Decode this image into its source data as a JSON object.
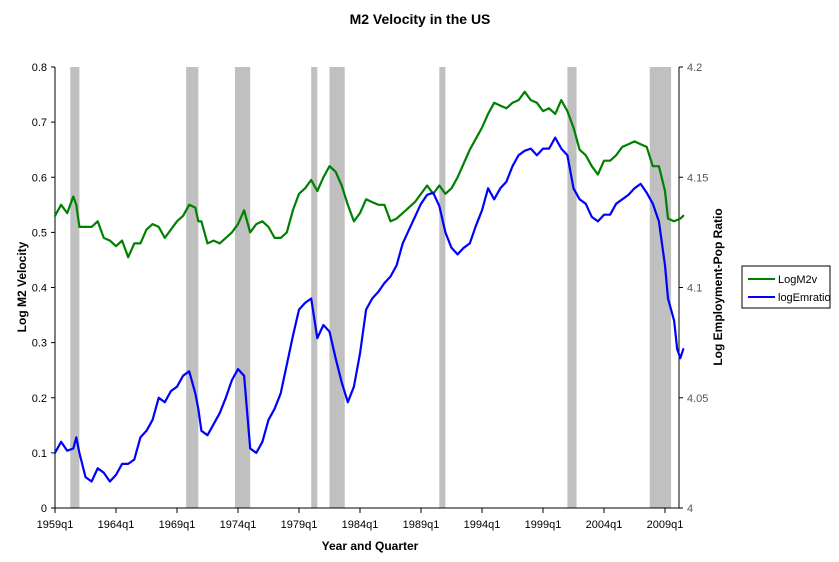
{
  "chart_data": {
    "type": "line",
    "title": "M2 Velocity in the US",
    "xlabel": "Year and Quarter",
    "ylabel": "Log M2 Velocity",
    "y2label": "Log Employment-Pop  Ratio",
    "ylim": [
      0,
      0.8
    ],
    "y2lim": [
      4,
      4.2
    ],
    "yticks": [
      "0",
      "0.1",
      "0.2",
      "0.3",
      "0.4",
      "0.5",
      "0.6",
      "0.7",
      "0.8"
    ],
    "y2ticks": [
      "4",
      "4.05",
      "4.1",
      "4.15",
      "4.2"
    ],
    "xticks": [
      {
        "label": "1959q1",
        "year": 1959.0
      },
      {
        "label": "1964q1",
        "year": 1964.0
      },
      {
        "label": "1969q1",
        "year": 1969.0
      },
      {
        "label": "1974q1",
        "year": 1974.0
      },
      {
        "label": "1979q1",
        "year": 1979.0
      },
      {
        "label": "1984q1",
        "year": 1984.0
      },
      {
        "label": "1989q1",
        "year": 1989.0
      },
      {
        "label": "1994q1",
        "year": 1994.0
      },
      {
        "label": "1999q1",
        "year": 1999.0
      },
      {
        "label": "2004q1",
        "year": 2004.0
      },
      {
        "label": "2009q1",
        "year": 2009.0
      }
    ],
    "xlim": [
      1959.0,
      2010.5
    ],
    "recessions": [
      [
        1960.25,
        1961.0
      ],
      [
        1969.75,
        1970.75
      ],
      [
        1973.75,
        1975.0
      ],
      [
        1980.0,
        1980.5
      ],
      [
        1981.5,
        1982.75
      ],
      [
        1990.5,
        1991.0
      ],
      [
        2001.0,
        2001.75
      ],
      [
        2007.75,
        2009.5
      ]
    ],
    "legend_position": "right",
    "series": [
      {
        "name": "LogM2v",
        "axis": "left",
        "color": "#008000",
        "points": [
          [
            1959.0,
            0.53
          ],
          [
            1959.5,
            0.55
          ],
          [
            1960.0,
            0.535
          ],
          [
            1960.5,
            0.565
          ],
          [
            1960.75,
            0.55
          ],
          [
            1961.0,
            0.51
          ],
          [
            1961.5,
            0.51
          ],
          [
            1962.0,
            0.51
          ],
          [
            1962.5,
            0.52
          ],
          [
            1963.0,
            0.49
          ],
          [
            1963.5,
            0.485
          ],
          [
            1964.0,
            0.475
          ],
          [
            1964.5,
            0.485
          ],
          [
            1965.0,
            0.455
          ],
          [
            1965.5,
            0.48
          ],
          [
            1966.0,
            0.48
          ],
          [
            1966.5,
            0.505
          ],
          [
            1967.0,
            0.515
          ],
          [
            1967.5,
            0.51
          ],
          [
            1968.0,
            0.49
          ],
          [
            1968.5,
            0.505
          ],
          [
            1969.0,
            0.52
          ],
          [
            1969.5,
            0.53
          ],
          [
            1970.0,
            0.55
          ],
          [
            1970.5,
            0.545
          ],
          [
            1970.75,
            0.52
          ],
          [
            1971.0,
            0.52
          ],
          [
            1971.5,
            0.48
          ],
          [
            1972.0,
            0.485
          ],
          [
            1972.5,
            0.48
          ],
          [
            1973.0,
            0.49
          ],
          [
            1973.5,
            0.5
          ],
          [
            1974.0,
            0.515
          ],
          [
            1974.5,
            0.54
          ],
          [
            1975.0,
            0.5
          ],
          [
            1975.5,
            0.515
          ],
          [
            1976.0,
            0.52
          ],
          [
            1976.5,
            0.51
          ],
          [
            1977.0,
            0.49
          ],
          [
            1977.5,
            0.49
          ],
          [
            1978.0,
            0.5
          ],
          [
            1978.5,
            0.54
          ],
          [
            1979.0,
            0.57
          ],
          [
            1979.5,
            0.58
          ],
          [
            1980.0,
            0.595
          ],
          [
            1980.5,
            0.575
          ],
          [
            1981.0,
            0.6
          ],
          [
            1981.5,
            0.62
          ],
          [
            1982.0,
            0.61
          ],
          [
            1982.5,
            0.585
          ],
          [
            1983.0,
            0.55
          ],
          [
            1983.5,
            0.52
          ],
          [
            1984.0,
            0.535
          ],
          [
            1984.5,
            0.56
          ],
          [
            1985.0,
            0.555
          ],
          [
            1985.5,
            0.55
          ],
          [
            1986.0,
            0.55
          ],
          [
            1986.5,
            0.52
          ],
          [
            1987.0,
            0.525
          ],
          [
            1987.5,
            0.535
          ],
          [
            1988.0,
            0.545
          ],
          [
            1988.5,
            0.555
          ],
          [
            1989.0,
            0.57
          ],
          [
            1989.5,
            0.585
          ],
          [
            1990.0,
            0.57
          ],
          [
            1990.5,
            0.585
          ],
          [
            1991.0,
            0.57
          ],
          [
            1991.5,
            0.58
          ],
          [
            1992.0,
            0.6
          ],
          [
            1992.5,
            0.625
          ],
          [
            1993.0,
            0.65
          ],
          [
            1993.5,
            0.67
          ],
          [
            1994.0,
            0.69
          ],
          [
            1994.5,
            0.715
          ],
          [
            1995.0,
            0.735
          ],
          [
            1995.5,
            0.73
          ],
          [
            1996.0,
            0.725
          ],
          [
            1996.5,
            0.735
          ],
          [
            1997.0,
            0.74
          ],
          [
            1997.5,
            0.755
          ],
          [
            1998.0,
            0.74
          ],
          [
            1998.5,
            0.735
          ],
          [
            1999.0,
            0.72
          ],
          [
            1999.5,
            0.725
          ],
          [
            2000.0,
            0.715
          ],
          [
            2000.5,
            0.74
          ],
          [
            2001.0,
            0.72
          ],
          [
            2001.5,
            0.69
          ],
          [
            2002.0,
            0.65
          ],
          [
            2002.5,
            0.64
          ],
          [
            2003.0,
            0.62
          ],
          [
            2003.5,
            0.605
          ],
          [
            2004.0,
            0.63
          ],
          [
            2004.5,
            0.63
          ],
          [
            2005.0,
            0.64
          ],
          [
            2005.5,
            0.655
          ],
          [
            2006.0,
            0.66
          ],
          [
            2006.5,
            0.665
          ],
          [
            2007.0,
            0.66
          ],
          [
            2007.5,
            0.655
          ],
          [
            2008.0,
            0.62
          ],
          [
            2008.5,
            0.62
          ],
          [
            2009.0,
            0.575
          ],
          [
            2009.25,
            0.525
          ],
          [
            2009.75,
            0.52
          ],
          [
            2010.25,
            0.525
          ],
          [
            2010.5,
            0.53
          ]
        ]
      },
      {
        "name": "logEmratio",
        "axis": "right",
        "color": "#0000ff",
        "points": [
          [
            1959.0,
            4.025
          ],
          [
            1959.5,
            4.03
          ],
          [
            1960.0,
            4.026
          ],
          [
            1960.5,
            4.027
          ],
          [
            1960.75,
            4.032
          ],
          [
            1961.0,
            4.025
          ],
          [
            1961.5,
            4.014
          ],
          [
            1962.0,
            4.012
          ],
          [
            1962.5,
            4.018
          ],
          [
            1963.0,
            4.016
          ],
          [
            1963.5,
            4.012
          ],
          [
            1964.0,
            4.015
          ],
          [
            1964.5,
            4.02
          ],
          [
            1965.0,
            4.02
          ],
          [
            1965.5,
            4.022
          ],
          [
            1966.0,
            4.032
          ],
          [
            1966.5,
            4.035
          ],
          [
            1967.0,
            4.04
          ],
          [
            1967.5,
            4.05
          ],
          [
            1968.0,
            4.048
          ],
          [
            1968.5,
            4.053
          ],
          [
            1969.0,
            4.055
          ],
          [
            1969.5,
            4.06
          ],
          [
            1970.0,
            4.062
          ],
          [
            1970.5,
            4.052
          ],
          [
            1970.75,
            4.045
          ],
          [
            1971.0,
            4.035
          ],
          [
            1971.5,
            4.033
          ],
          [
            1972.0,
            4.038
          ],
          [
            1972.5,
            4.043
          ],
          [
            1973.0,
            4.05
          ],
          [
            1973.5,
            4.058
          ],
          [
            1974.0,
            4.063
          ],
          [
            1974.5,
            4.06
          ],
          [
            1975.0,
            4.027
          ],
          [
            1975.5,
            4.025
          ],
          [
            1976.0,
            4.03
          ],
          [
            1976.5,
            4.04
          ],
          [
            1977.0,
            4.045
          ],
          [
            1977.5,
            4.052
          ],
          [
            1978.0,
            4.065
          ],
          [
            1978.5,
            4.078
          ],
          [
            1979.0,
            4.09
          ],
          [
            1979.5,
            4.093
          ],
          [
            1980.0,
            4.095
          ],
          [
            1980.5,
            4.077
          ],
          [
            1981.0,
            4.083
          ],
          [
            1981.5,
            4.08
          ],
          [
            1982.0,
            4.068
          ],
          [
            1982.5,
            4.057
          ],
          [
            1983.0,
            4.048
          ],
          [
            1983.5,
            4.055
          ],
          [
            1984.0,
            4.07
          ],
          [
            1984.5,
            4.09
          ],
          [
            1985.0,
            4.095
          ],
          [
            1985.5,
            4.098
          ],
          [
            1986.0,
            4.102
          ],
          [
            1986.5,
            4.105
          ],
          [
            1987.0,
            4.11
          ],
          [
            1987.5,
            4.12
          ],
          [
            1988.0,
            4.126
          ],
          [
            1988.5,
            4.132
          ],
          [
            1989.0,
            4.138
          ],
          [
            1989.5,
            4.142
          ],
          [
            1990.0,
            4.143
          ],
          [
            1990.5,
            4.137
          ],
          [
            1991.0,
            4.125
          ],
          [
            1991.5,
            4.118
          ],
          [
            1992.0,
            4.115
          ],
          [
            1992.5,
            4.118
          ],
          [
            1993.0,
            4.12
          ],
          [
            1993.5,
            4.128
          ],
          [
            1994.0,
            4.135
          ],
          [
            1994.5,
            4.145
          ],
          [
            1995.0,
            4.14
          ],
          [
            1995.5,
            4.145
          ],
          [
            1996.0,
            4.148
          ],
          [
            1996.5,
            4.155
          ],
          [
            1997.0,
            4.16
          ],
          [
            1997.5,
            4.162
          ],
          [
            1998.0,
            4.163
          ],
          [
            1998.5,
            4.16
          ],
          [
            1999.0,
            4.163
          ],
          [
            1999.5,
            4.163
          ],
          [
            2000.0,
            4.168
          ],
          [
            2000.5,
            4.163
          ],
          [
            2001.0,
            4.16
          ],
          [
            2001.5,
            4.145
          ],
          [
            2002.0,
            4.14
          ],
          [
            2002.5,
            4.138
          ],
          [
            2003.0,
            4.132
          ],
          [
            2003.5,
            4.13
          ],
          [
            2004.0,
            4.133
          ],
          [
            2004.5,
            4.133
          ],
          [
            2005.0,
            4.138
          ],
          [
            2005.5,
            4.14
          ],
          [
            2006.0,
            4.142
          ],
          [
            2006.5,
            4.145
          ],
          [
            2007.0,
            4.147
          ],
          [
            2007.5,
            4.143
          ],
          [
            2008.0,
            4.138
          ],
          [
            2008.5,
            4.13
          ],
          [
            2009.0,
            4.11
          ],
          [
            2009.25,
            4.095
          ],
          [
            2009.75,
            4.085
          ],
          [
            2010.0,
            4.072
          ],
          [
            2010.25,
            4.068
          ],
          [
            2010.5,
            4.072
          ]
        ]
      }
    ]
  }
}
